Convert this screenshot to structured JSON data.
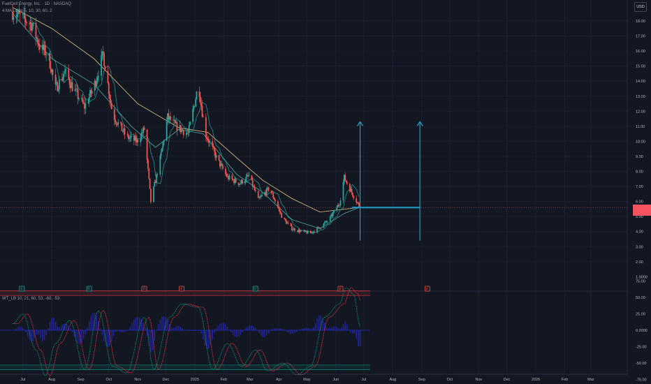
{
  "header": {
    "symbol_line": "FuelCell Energy, Inc. · 1D · NASDAQ",
    "ma_line": "4 MA Lines 5, 10, 30, 60, 2",
    "currency_button": "USD"
  },
  "indicator": {
    "label": "WT_LB 10, 21, 60, 53, -60, -53"
  },
  "current_price_label": "",
  "colors": {
    "background": "#131722",
    "up": "#26a69a",
    "down": "#ef5350",
    "ma_short": "#26a69a",
    "ma_mid": "#4a9a8f",
    "ma_long": "#c9b07a",
    "arrow": "#1e9ec8",
    "wt_blue": "#2b2bd4",
    "wt_red": "#f23645",
    "wt_green": "#089981"
  },
  "events": [
    {
      "label": "E",
      "color": "green",
      "date": "2024-06-30"
    },
    {
      "label": "E",
      "color": "green",
      "date": "2024-09-10"
    },
    {
      "label": "D",
      "color": "red",
      "date": "2024-11-08"
    },
    {
      "label": "E",
      "color": "red",
      "date": "2024-12-18"
    },
    {
      "label": "E",
      "color": "green",
      "date": "2025-03-07"
    },
    {
      "label": "E",
      "color": "red",
      "date": "2025-06-06"
    },
    {
      "label": "E",
      "color": "red",
      "date": "2025-09-07"
    }
  ],
  "chart_data": {
    "type": "candlestick",
    "x_ticks": [
      "Jul",
      "Aug",
      "Sep",
      "Oct",
      "Nov",
      "Dec",
      "2025",
      "Feb",
      "Mar",
      "Apr",
      "May",
      "Jun",
      "Jul",
      "Aug",
      "Sep",
      "Oct",
      "Nov",
      "Dec",
      "2026",
      "Feb",
      "Mar"
    ],
    "y_ticks": [
      "18.00",
      "17.00",
      "16.00",
      "15.00",
      "14.00",
      "13.00",
      "12.00",
      "11.00",
      "10.00",
      "9.00",
      "8.00",
      "7.00",
      "6.00",
      "5.00",
      "4.00",
      "3.00",
      "2.00",
      "1.0000"
    ],
    "ylim": [
      1.0,
      19.0
    ],
    "price_path": [
      {
        "date": "2024-06-20",
        "close": 18.6
      },
      {
        "date": "2024-07-10",
        "close": 17.8
      },
      {
        "date": "2024-07-20",
        "close": 16.2
      },
      {
        "date": "2024-07-28",
        "close": 15.8
      },
      {
        "date": "2024-08-05",
        "close": 13.5
      },
      {
        "date": "2024-08-15",
        "close": 14.6
      },
      {
        "date": "2024-08-25",
        "close": 13.4
      },
      {
        "date": "2024-09-05",
        "close": 12.3
      },
      {
        "date": "2024-09-15",
        "close": 13.6
      },
      {
        "date": "2024-09-25",
        "close": 15.8
      },
      {
        "date": "2024-10-05",
        "close": 11.8
      },
      {
        "date": "2024-10-20",
        "close": 10.3
      },
      {
        "date": "2024-10-31",
        "close": 10.0
      },
      {
        "date": "2024-11-08",
        "close": 10.8
      },
      {
        "date": "2024-11-15",
        "close": 6.0
      },
      {
        "date": "2024-11-25",
        "close": 8.8
      },
      {
        "date": "2024-12-03",
        "close": 11.6
      },
      {
        "date": "2024-12-12",
        "close": 11.0
      },
      {
        "date": "2024-12-25",
        "close": 10.5
      },
      {
        "date": "2025-01-05",
        "close": 13.8
      },
      {
        "date": "2025-01-12",
        "close": 10.6
      },
      {
        "date": "2025-01-25",
        "close": 8.8
      },
      {
        "date": "2025-02-05",
        "close": 7.6
      },
      {
        "date": "2025-02-18",
        "close": 7.2
      },
      {
        "date": "2025-02-28",
        "close": 7.7
      },
      {
        "date": "2025-03-10",
        "close": 6.1
      },
      {
        "date": "2025-03-22",
        "close": 6.9
      },
      {
        "date": "2025-04-05",
        "close": 4.9
      },
      {
        "date": "2025-04-15",
        "close": 4.2
      },
      {
        "date": "2025-04-25",
        "close": 4.0
      },
      {
        "date": "2025-05-05",
        "close": 3.9
      },
      {
        "date": "2025-05-15",
        "close": 4.3
      },
      {
        "date": "2025-05-25",
        "close": 4.8
      },
      {
        "date": "2025-06-05",
        "close": 5.9
      },
      {
        "date": "2025-06-10",
        "close": 7.6
      },
      {
        "date": "2025-06-18",
        "close": 6.6
      },
      {
        "date": "2025-06-26",
        "close": 5.7
      }
    ],
    "moving_averages": [
      {
        "name": "MA long",
        "color": "#c9b07a",
        "points": [
          {
            "date": "2024-06-20",
            "close": 18.9
          },
          {
            "date": "2024-08-01",
            "close": 17.5
          },
          {
            "date": "2024-09-15",
            "close": 15.5
          },
          {
            "date": "2024-11-01",
            "close": 12.5
          },
          {
            "date": "2024-12-15",
            "close": 10.9
          },
          {
            "date": "2025-01-15",
            "close": 10.6
          },
          {
            "date": "2025-02-15",
            "close": 8.9
          },
          {
            "date": "2025-03-15",
            "close": 7.4
          },
          {
            "date": "2025-04-15",
            "close": 6.2
          },
          {
            "date": "2025-05-15",
            "close": 5.3
          },
          {
            "date": "2025-06-26",
            "close": 5.6
          }
        ]
      },
      {
        "name": "MA mid",
        "color": "#4a9a8f",
        "points": [
          {
            "date": "2024-06-20",
            "close": 18.5
          },
          {
            "date": "2024-08-01",
            "close": 15.5
          },
          {
            "date": "2024-09-15",
            "close": 13.8
          },
          {
            "date": "2024-10-25",
            "close": 11.0
          },
          {
            "date": "2024-11-20",
            "close": 9.6
          },
          {
            "date": "2024-12-15",
            "close": 10.8
          },
          {
            "date": "2025-01-10",
            "close": 10.5
          },
          {
            "date": "2025-02-15",
            "close": 7.8
          },
          {
            "date": "2025-03-15",
            "close": 6.6
          },
          {
            "date": "2025-04-15",
            "close": 4.8
          },
          {
            "date": "2025-05-15",
            "close": 4.2
          },
          {
            "date": "2025-06-10",
            "close": 5.2
          },
          {
            "date": "2025-06-26",
            "close": 5.6
          }
        ]
      }
    ],
    "targets": [
      {
        "date": "2025-06-27",
        "low": 3.4,
        "high": 11.3
      },
      {
        "date": "2025-08-30",
        "low": 3.4,
        "high": 11.3
      }
    ],
    "support_level": 5.6,
    "support_range": [
      "2025-06-18",
      "2025-08-30"
    ],
    "oscillator": {
      "name": "WT_LB",
      "y_ticks": [
        "75.00",
        "50.00",
        "25.00",
        "0.0000",
        "-25.00",
        "-50.00",
        "-75.00"
      ],
      "ylim": [
        -90,
        90
      ],
      "levels": [
        60,
        53,
        0,
        -53,
        -60
      ],
      "wt_path": [
        {
          "date": "2024-06-20",
          "close": 10
        },
        {
          "date": "2024-07-01",
          "close": 25
        },
        {
          "date": "2024-07-15",
          "close": -30
        },
        {
          "date": "2024-07-25",
          "close": -70
        },
        {
          "date": "2024-08-05",
          "close": -20
        },
        {
          "date": "2024-08-20",
          "close": 15
        },
        {
          "date": "2024-09-05",
          "close": -60
        },
        {
          "date": "2024-09-20",
          "close": 30
        },
        {
          "date": "2024-10-05",
          "close": -55
        },
        {
          "date": "2024-10-20",
          "close": -65
        },
        {
          "date": "2024-11-08",
          "close": 20
        },
        {
          "date": "2024-11-18",
          "close": -60
        },
        {
          "date": "2024-12-05",
          "close": 20
        },
        {
          "date": "2024-12-18",
          "close": 40
        },
        {
          "date": "2025-01-05",
          "close": 35
        },
        {
          "date": "2025-01-20",
          "close": -60
        },
        {
          "date": "2025-02-05",
          "close": -20
        },
        {
          "date": "2025-02-20",
          "close": -55
        },
        {
          "date": "2025-03-07",
          "close": -30
        },
        {
          "date": "2025-03-20",
          "close": -62
        },
        {
          "date": "2025-04-05",
          "close": -50
        },
        {
          "date": "2025-04-20",
          "close": -68
        },
        {
          "date": "2025-05-05",
          "close": -55
        },
        {
          "date": "2025-05-20",
          "close": 20
        },
        {
          "date": "2025-06-05",
          "close": 40
        },
        {
          "date": "2025-06-12",
          "close": 65
        },
        {
          "date": "2025-06-20",
          "close": 55
        },
        {
          "date": "2025-06-27",
          "close": 5
        }
      ]
    }
  }
}
